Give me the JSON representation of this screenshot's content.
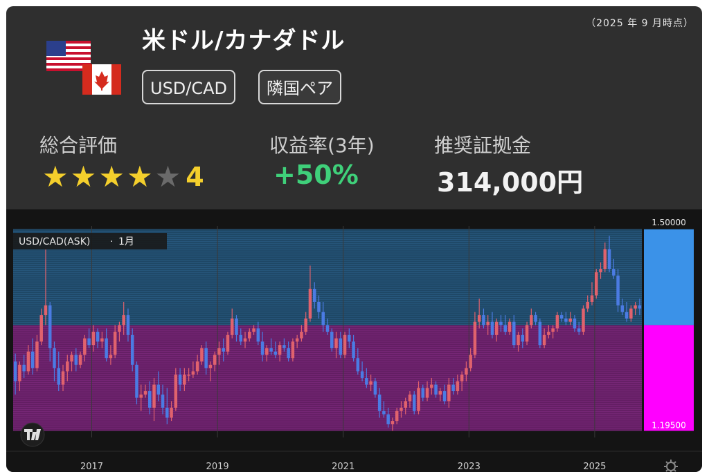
{
  "header": {
    "as_of": "（2025 年 9 月時点）",
    "title": "米ドル/カナダドル",
    "tags": [
      "USD/CAD",
      "隣国ペア"
    ]
  },
  "metrics": {
    "rating_label": "総合評価",
    "rating_value": "4",
    "rating_stars": 4,
    "rating_max": 5,
    "return_label": "収益率(3年)",
    "return_value": "+50%",
    "margin_label": "推奨証拠金",
    "margin_value": "314,000円"
  },
  "icons": {
    "flags": [
      "us-flag-icon",
      "canada-flag-icon"
    ],
    "tradingview": "tradingview-logo-icon",
    "settings": "settings-gear-icon"
  },
  "colors": {
    "card_bg": "#2f2f2f",
    "chart_bg": "#141414",
    "up_candle": "#e0626d",
    "down_candle": "#4b7be3",
    "upper_band": "#3b92e8",
    "lower_band": "#ff00ff",
    "rating_star": "#f4cf2c",
    "return_green": "#3fd07a"
  },
  "chart_data": {
    "type": "candlestick",
    "symbol_label": "USD/CAD(ASK)",
    "interval_label": "1月",
    "y_axis_labels": [
      "1.50000",
      "1.19500"
    ],
    "x_ticks": [
      "2017",
      "2019",
      "2021",
      "2023",
      "2025"
    ],
    "x_tick_years": [
      2017,
      2019,
      2021,
      2023,
      2025
    ],
    "x_start": 2015.75,
    "x_end": 2025.75,
    "y_range_upper": 1.5,
    "y_range_lower": 1.195,
    "y_range_split": 1.355,
    "ylim": [
      1.185,
      1.505
    ],
    "series": [
      {
        "values": [
          [
            1.3,
            1.312,
            1.25,
            1.27
          ],
          [
            1.27,
            1.3,
            1.255,
            1.295
          ],
          [
            1.295,
            1.31,
            1.275,
            1.285
          ],
          [
            1.285,
            1.325,
            1.28,
            1.315
          ],
          [
            1.315,
            1.335,
            1.28,
            1.29
          ],
          [
            1.29,
            1.34,
            1.285,
            1.33
          ],
          [
            1.33,
            1.38,
            1.325,
            1.37
          ],
          [
            1.37,
            1.47,
            1.355,
            1.385
          ],
          [
            1.385,
            1.39,
            1.3,
            1.32
          ],
          [
            1.32,
            1.33,
            1.27,
            1.29
          ],
          [
            1.29,
            1.315,
            1.255,
            1.265
          ],
          [
            1.265,
            1.295,
            1.255,
            1.285
          ],
          [
            1.285,
            1.31,
            1.27,
            1.3
          ],
          [
            1.3,
            1.315,
            1.285,
            1.31
          ],
          [
            1.31,
            1.32,
            1.285,
            1.295
          ],
          [
            1.295,
            1.315,
            1.29,
            1.31
          ],
          [
            1.31,
            1.34,
            1.3,
            1.335
          ],
          [
            1.335,
            1.35,
            1.32,
            1.325
          ],
          [
            1.325,
            1.355,
            1.315,
            1.345
          ],
          [
            1.345,
            1.35,
            1.32,
            1.33
          ],
          [
            1.33,
            1.345,
            1.32,
            1.335
          ],
          [
            1.335,
            1.35,
            1.3,
            1.305
          ],
          [
            1.305,
            1.325,
            1.295,
            1.31
          ],
          [
            1.31,
            1.355,
            1.305,
            1.345
          ],
          [
            1.345,
            1.36,
            1.33,
            1.355
          ],
          [
            1.355,
            1.39,
            1.34,
            1.37
          ],
          [
            1.37,
            1.38,
            1.33,
            1.34
          ],
          [
            1.34,
            1.35,
            1.285,
            1.295
          ],
          [
            1.295,
            1.3,
            1.235,
            1.245
          ],
          [
            1.245,
            1.265,
            1.225,
            1.25
          ],
          [
            1.25,
            1.265,
            1.245,
            1.255
          ],
          [
            1.255,
            1.27,
            1.22,
            1.23
          ],
          [
            1.23,
            1.275,
            1.21,
            1.265
          ],
          [
            1.265,
            1.285,
            1.24,
            1.25
          ],
          [
            1.25,
            1.265,
            1.22,
            1.23
          ],
          [
            1.23,
            1.26,
            1.205,
            1.215
          ],
          [
            1.215,
            1.24,
            1.21,
            1.23
          ],
          [
            1.23,
            1.29,
            1.225,
            1.28
          ],
          [
            1.28,
            1.29,
            1.255,
            1.265
          ],
          [
            1.265,
            1.29,
            1.255,
            1.28
          ],
          [
            1.28,
            1.29,
            1.27,
            1.28
          ],
          [
            1.28,
            1.3,
            1.275,
            1.285
          ],
          [
            1.285,
            1.31,
            1.28,
            1.3
          ],
          [
            1.3,
            1.325,
            1.295,
            1.32
          ],
          [
            1.32,
            1.33,
            1.28,
            1.29
          ],
          [
            1.29,
            1.3,
            1.27,
            1.295
          ],
          [
            1.295,
            1.315,
            1.285,
            1.31
          ],
          [
            1.31,
            1.33,
            1.295,
            1.32
          ],
          [
            1.32,
            1.335,
            1.3,
            1.315
          ],
          [
            1.315,
            1.345,
            1.31,
            1.34
          ],
          [
            1.34,
            1.38,
            1.335,
            1.365
          ],
          [
            1.365,
            1.37,
            1.33,
            1.34
          ],
          [
            1.34,
            1.35,
            1.325,
            1.33
          ],
          [
            1.33,
            1.345,
            1.32,
            1.335
          ],
          [
            1.335,
            1.35,
            1.33,
            1.345
          ],
          [
            1.345,
            1.355,
            1.34,
            1.35
          ],
          [
            1.35,
            1.36,
            1.325,
            1.33
          ],
          [
            1.33,
            1.345,
            1.3,
            1.31
          ],
          [
            1.31,
            1.325,
            1.3,
            1.32
          ],
          [
            1.32,
            1.335,
            1.31,
            1.315
          ],
          [
            1.315,
            1.33,
            1.305,
            1.31
          ],
          [
            1.31,
            1.33,
            1.3,
            1.325
          ],
          [
            1.325,
            1.335,
            1.315,
            1.32
          ],
          [
            1.32,
            1.33,
            1.3,
            1.305
          ],
          [
            1.305,
            1.335,
            1.3,
            1.33
          ],
          [
            1.33,
            1.34,
            1.32,
            1.335
          ],
          [
            1.335,
            1.355,
            1.33,
            1.345
          ],
          [
            1.345,
            1.375,
            1.34,
            1.365
          ],
          [
            1.365,
            1.445,
            1.36,
            1.41
          ],
          [
            1.41,
            1.42,
            1.38,
            1.39
          ],
          [
            1.39,
            1.4,
            1.365,
            1.375
          ],
          [
            1.375,
            1.39,
            1.345,
            1.355
          ],
          [
            1.355,
            1.365,
            1.34,
            1.345
          ],
          [
            1.345,
            1.35,
            1.315,
            1.32
          ],
          [
            1.32,
            1.345,
            1.305,
            1.335
          ],
          [
            1.335,
            1.345,
            1.305,
            1.31
          ],
          [
            1.31,
            1.345,
            1.305,
            1.34
          ],
          [
            1.34,
            1.35,
            1.32,
            1.33
          ],
          [
            1.33,
            1.34,
            1.3,
            1.305
          ],
          [
            1.305,
            1.32,
            1.28,
            1.285
          ],
          [
            1.285,
            1.3,
            1.27,
            1.275
          ],
          [
            1.275,
            1.29,
            1.26,
            1.265
          ],
          [
            1.265,
            1.28,
            1.255,
            1.27
          ],
          [
            1.27,
            1.275,
            1.245,
            1.25
          ],
          [
            1.25,
            1.26,
            1.215,
            1.225
          ],
          [
            1.225,
            1.24,
            1.215,
            1.22
          ],
          [
            1.22,
            1.23,
            1.2,
            1.205
          ],
          [
            1.205,
            1.215,
            1.195,
            1.21
          ],
          [
            1.21,
            1.23,
            1.205,
            1.225
          ],
          [
            1.225,
            1.24,
            1.215,
            1.23
          ],
          [
            1.23,
            1.245,
            1.22,
            1.24
          ],
          [
            1.24,
            1.255,
            1.23,
            1.25
          ],
          [
            1.25,
            1.255,
            1.22,
            1.225
          ],
          [
            1.225,
            1.27,
            1.22,
            1.26
          ],
          [
            1.26,
            1.265,
            1.24,
            1.245
          ],
          [
            1.245,
            1.27,
            1.24,
            1.26
          ],
          [
            1.26,
            1.275,
            1.25,
            1.265
          ],
          [
            1.265,
            1.27,
            1.245,
            1.25
          ],
          [
            1.25,
            1.26,
            1.24,
            1.255
          ],
          [
            1.255,
            1.265,
            1.235,
            1.24
          ],
          [
            1.24,
            1.275,
            1.23,
            1.265
          ],
          [
            1.265,
            1.275,
            1.25,
            1.255
          ],
          [
            1.255,
            1.28,
            1.25,
            1.27
          ],
          [
            1.27,
            1.285,
            1.255,
            1.28
          ],
          [
            1.28,
            1.3,
            1.27,
            1.29
          ],
          [
            1.29,
            1.32,
            1.285,
            1.31
          ],
          [
            1.31,
            1.375,
            1.305,
            1.36
          ],
          [
            1.36,
            1.395,
            1.35,
            1.37
          ],
          [
            1.37,
            1.38,
            1.35,
            1.355
          ],
          [
            1.355,
            1.37,
            1.34,
            1.36
          ],
          [
            1.36,
            1.375,
            1.335,
            1.34
          ],
          [
            1.34,
            1.365,
            1.33,
            1.36
          ],
          [
            1.36,
            1.37,
            1.345,
            1.355
          ],
          [
            1.355,
            1.37,
            1.34,
            1.345
          ],
          [
            1.345,
            1.365,
            1.34,
            1.36
          ],
          [
            1.36,
            1.37,
            1.32,
            1.325
          ],
          [
            1.325,
            1.345,
            1.315,
            1.34
          ],
          [
            1.34,
            1.35,
            1.32,
            1.33
          ],
          [
            1.33,
            1.36,
            1.325,
            1.355
          ],
          [
            1.355,
            1.38,
            1.35,
            1.37
          ],
          [
            1.37,
            1.375,
            1.355,
            1.36
          ],
          [
            1.36,
            1.365,
            1.32,
            1.325
          ],
          [
            1.325,
            1.35,
            1.32,
            1.34
          ],
          [
            1.34,
            1.355,
            1.335,
            1.345
          ],
          [
            1.345,
            1.355,
            1.335,
            1.35
          ],
          [
            1.35,
            1.375,
            1.345,
            1.37
          ],
          [
            1.37,
            1.375,
            1.36,
            1.365
          ],
          [
            1.365,
            1.375,
            1.355,
            1.36
          ],
          [
            1.36,
            1.375,
            1.355,
            1.365
          ],
          [
            1.365,
            1.37,
            1.345,
            1.35
          ],
          [
            1.35,
            1.36,
            1.34,
            1.345
          ],
          [
            1.345,
            1.385,
            1.34,
            1.38
          ],
          [
            1.38,
            1.4,
            1.375,
            1.39
          ],
          [
            1.39,
            1.42,
            1.385,
            1.4
          ],
          [
            1.4,
            1.44,
            1.395,
            1.435
          ],
          [
            1.435,
            1.45,
            1.425,
            1.44
          ],
          [
            1.44,
            1.48,
            1.435,
            1.47
          ],
          [
            1.47,
            1.49,
            1.435,
            1.44
          ],
          [
            1.44,
            1.455,
            1.425,
            1.43
          ],
          [
            1.43,
            1.44,
            1.375,
            1.385
          ],
          [
            1.385,
            1.395,
            1.37,
            1.375
          ],
          [
            1.375,
            1.39,
            1.36,
            1.365
          ],
          [
            1.365,
            1.385,
            1.36,
            1.38
          ],
          [
            1.38,
            1.39,
            1.37,
            1.385
          ],
          [
            1.385,
            1.395,
            1.37,
            1.38
          ]
        ]
      }
    ]
  }
}
